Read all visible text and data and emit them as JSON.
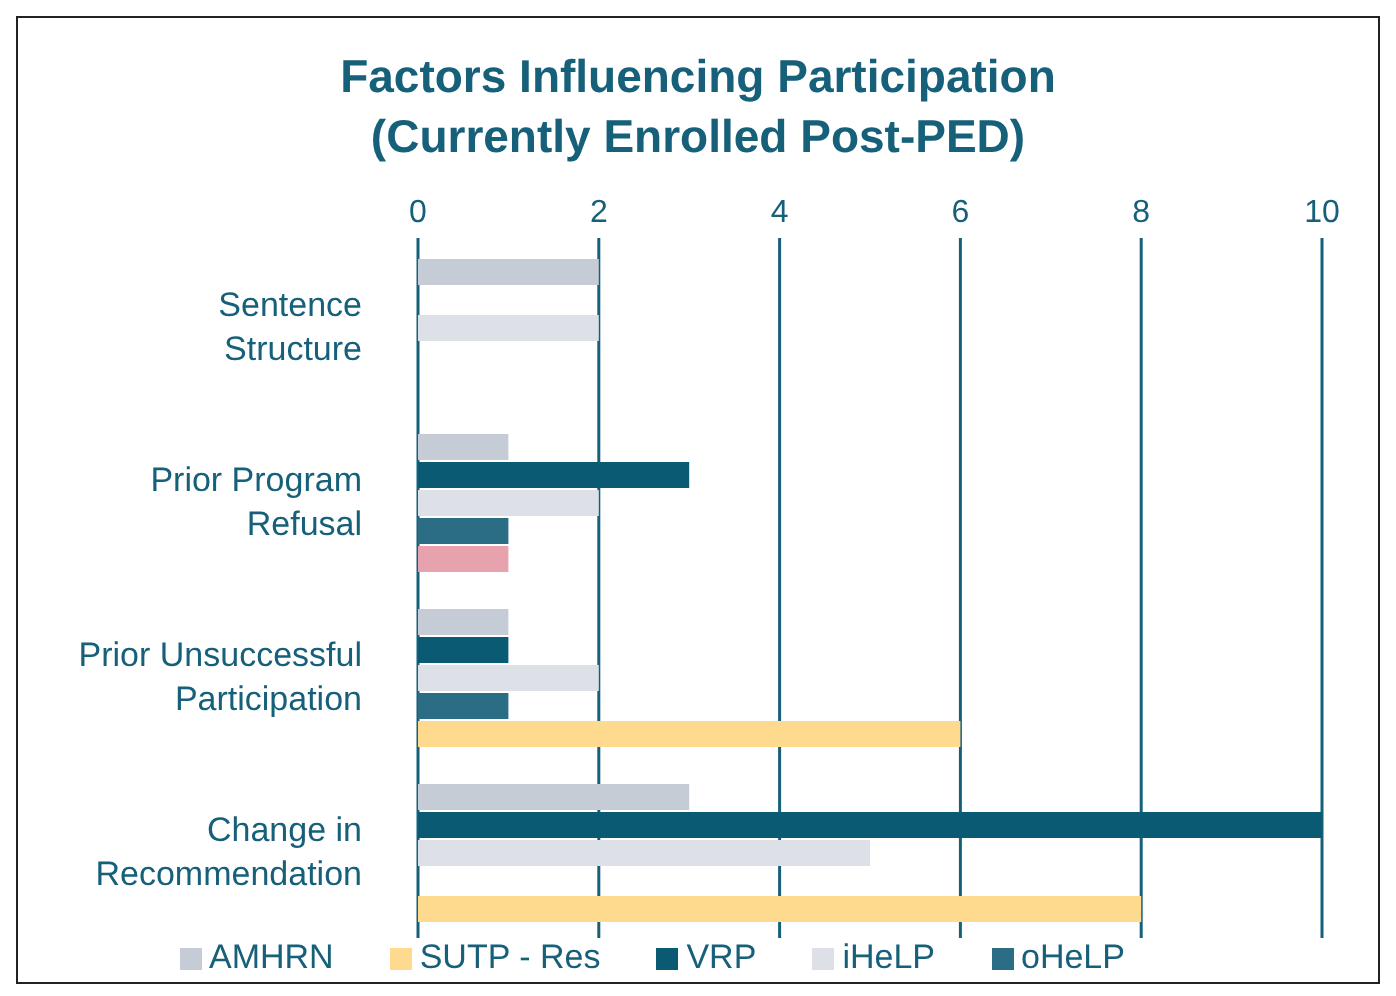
{
  "chart_data": {
    "type": "bar",
    "orientation": "horizontal",
    "title": "Factors Influencing Participation\n(Currently Enrolled Post-PED)",
    "categories": [
      "Sentence Structure",
      "Prior Program Refusal",
      "Prior Unsuccessful Participation",
      "Change in Recommendation"
    ],
    "series": [
      {
        "name": "AMHRN",
        "color": "#c5ccd6",
        "values": [
          2,
          1,
          1,
          3
        ]
      },
      {
        "name": "VRP",
        "color": "#0b5a74",
        "values": [
          0,
          3,
          1,
          10
        ]
      },
      {
        "name": "iHeLP",
        "color": "#dde1e7",
        "values": [
          2,
          2,
          2,
          5
        ]
      },
      {
        "name": "oHeLP",
        "color": "#2a6d84",
        "values": [
          0,
          1,
          1,
          0
        ]
      },
      {
        "name": "SUTP - Res",
        "color": "#fdda8e",
        "colors": [
          "#fdda8e",
          "#e6a3ad",
          "#fdda8e",
          "#fdda8e"
        ],
        "values": [
          0,
          1,
          6,
          8
        ]
      }
    ],
    "xlim": [
      0,
      10
    ],
    "xticks": [
      0,
      2,
      4,
      6,
      8,
      10
    ],
    "grid": "x",
    "legend": "bottom"
  }
}
